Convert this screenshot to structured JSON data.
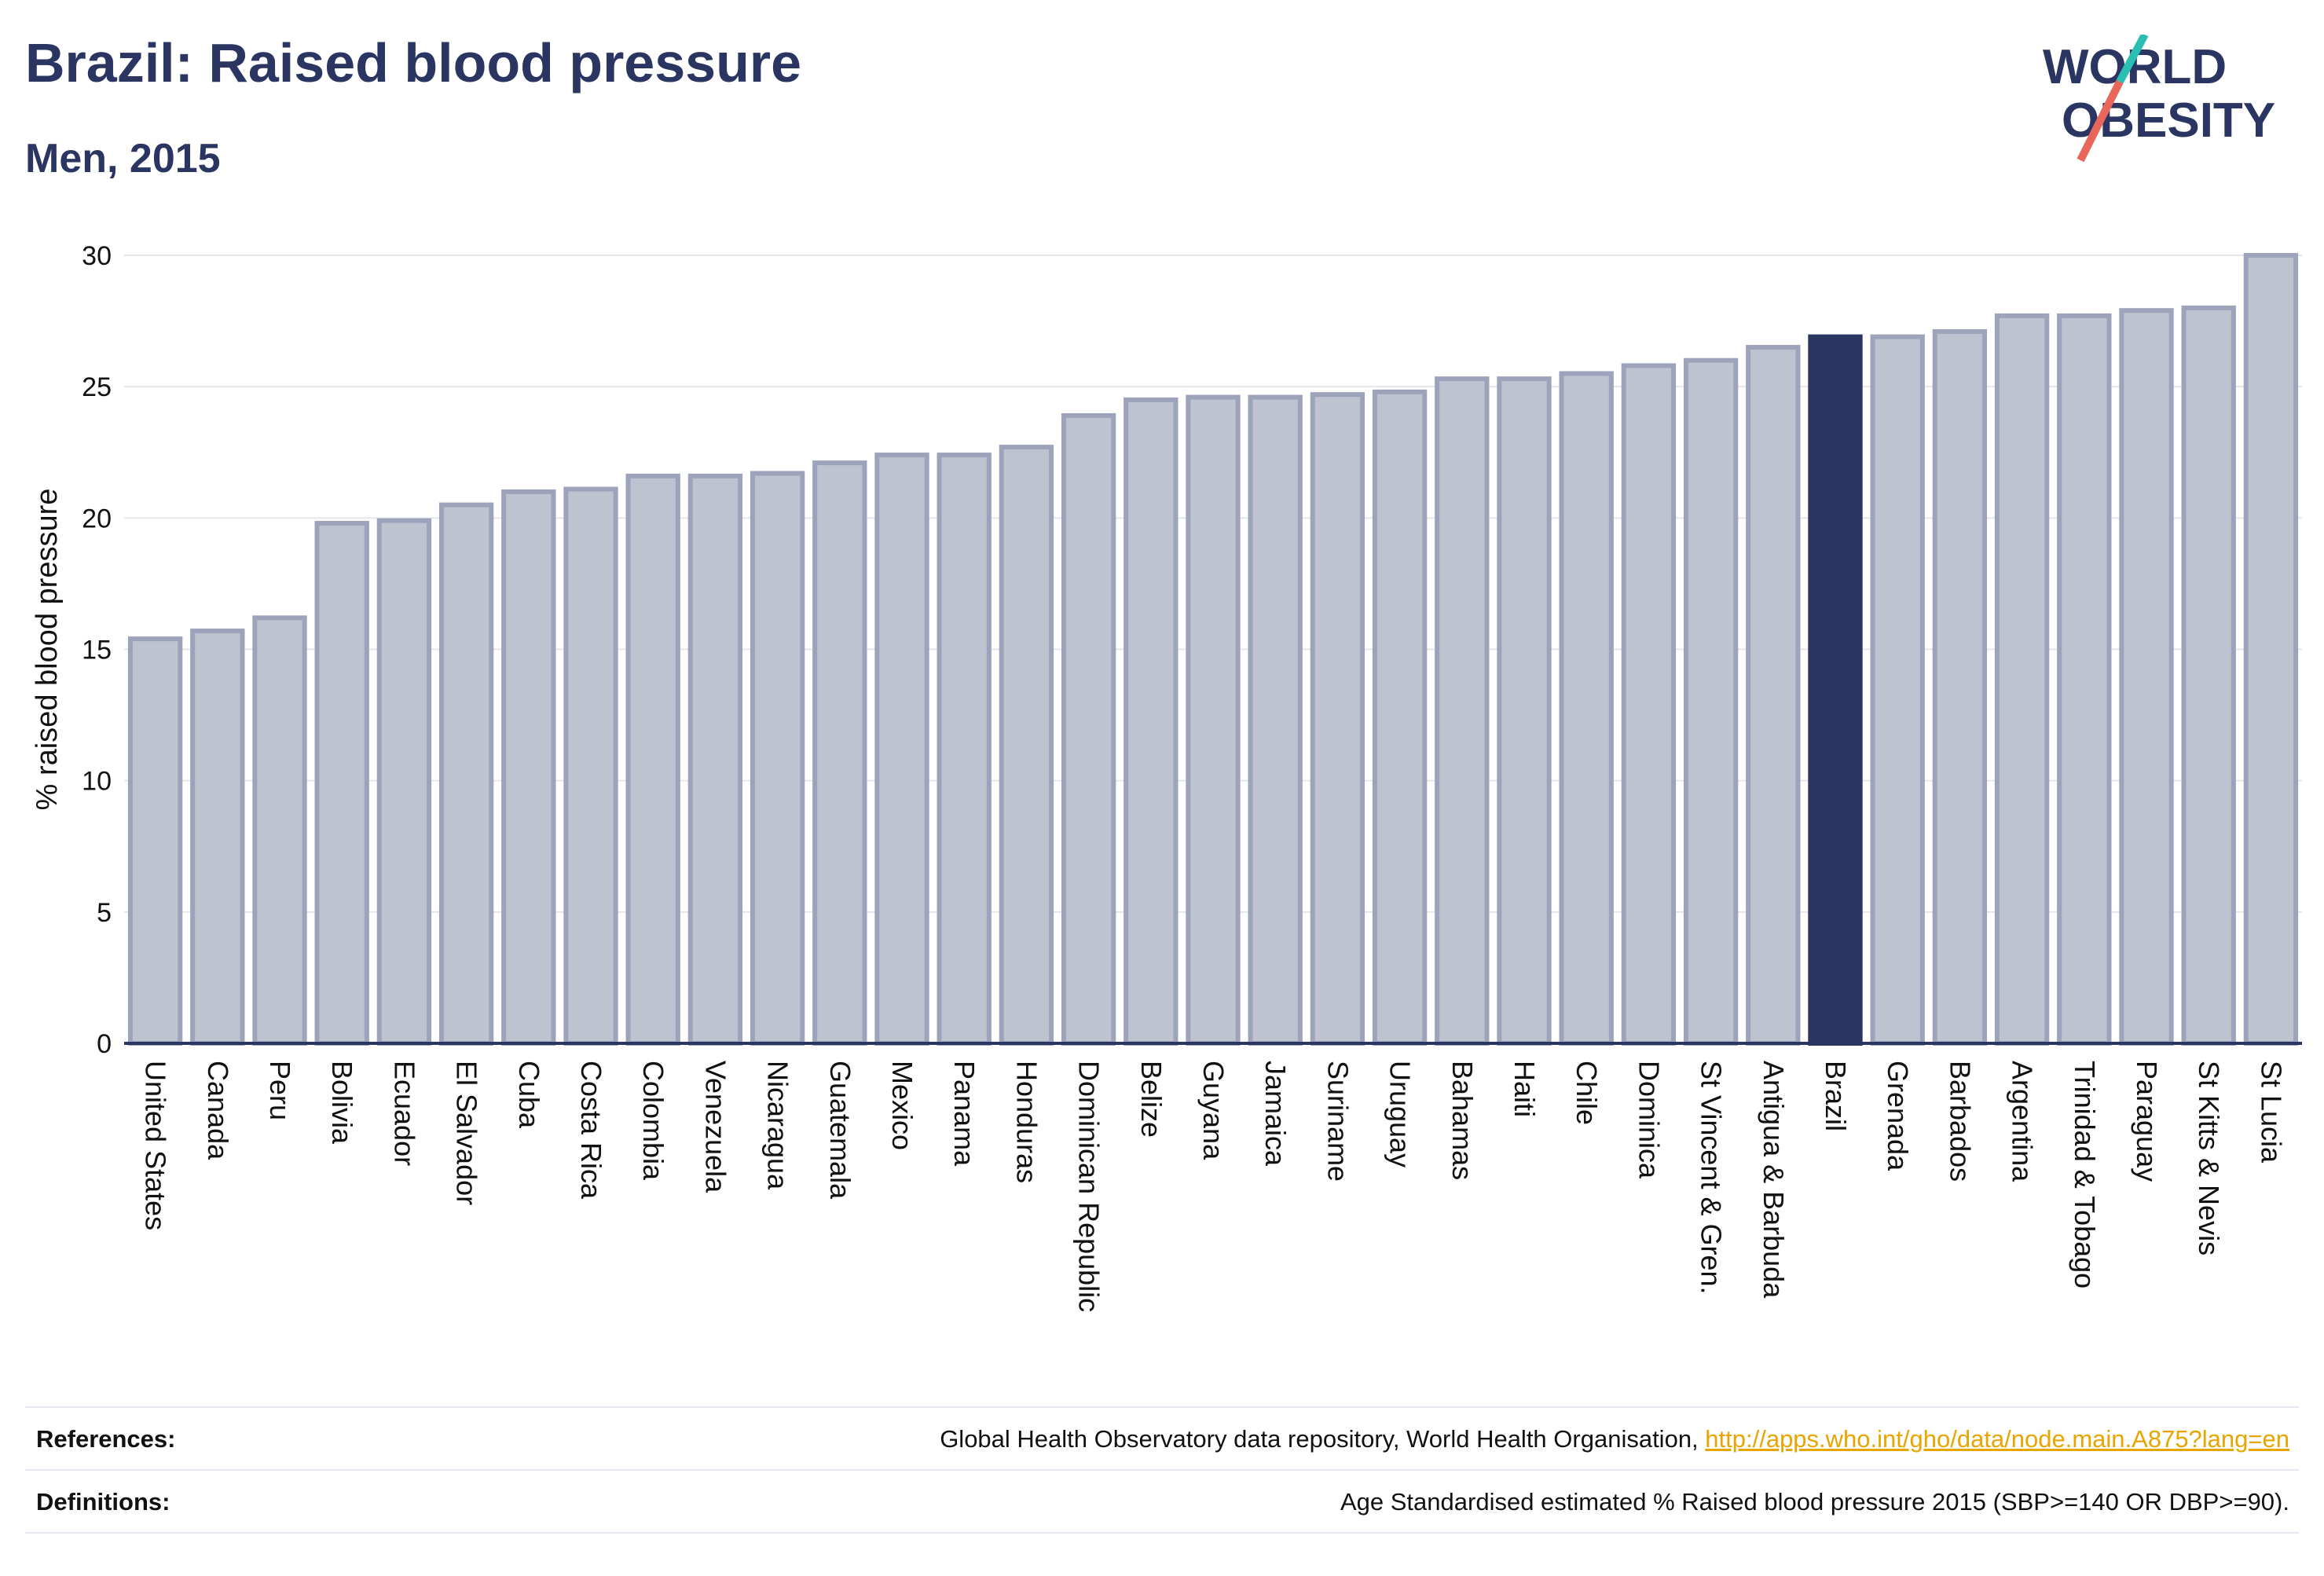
{
  "header": {
    "title": "Brazil: Raised blood pressure",
    "subtitle": "Men, 2015"
  },
  "logo": {
    "line1": "WORLD",
    "line2": "OBESITY",
    "colors": {
      "text": "#2a3561",
      "slash_top": "#2bbfb3",
      "slash_bottom": "#e8665a"
    }
  },
  "colors": {
    "bar_fill": "#bfc2cf",
    "bar_stroke": "#9ea3bc",
    "highlight": "#2a3561",
    "grid": "#e4e6ec",
    "axis": "#2a3561"
  },
  "chart_data": {
    "type": "bar",
    "ylabel": "% raised blood pressure",
    "xlabel": "",
    "ylim": [
      0,
      30
    ],
    "yticks": [
      0,
      5,
      10,
      15,
      20,
      25,
      30
    ],
    "grid": true,
    "highlight": "Brazil",
    "categories": [
      "United States",
      "Canada",
      "Peru",
      "Bolivia",
      "Ecuador",
      "El Salvador",
      "Cuba",
      "Costa Rica",
      "Colombia",
      "Venezuela",
      "Nicaragua",
      "Guatemala",
      "Mexico",
      "Panama",
      "Honduras",
      "Dominican Republic",
      "Belize",
      "Guyana",
      "Jamaica",
      "Suriname",
      "Uruguay",
      "Bahamas",
      "Haiti",
      "Chile",
      "Dominica",
      "St Vincent & Gren.",
      "Antigua & Barbuda",
      "Brazil",
      "Grenada",
      "Barbados",
      "Argentina",
      "Trinidad & Tobago",
      "Paraguay",
      "St Kitts & Nevis",
      "St Lucia"
    ],
    "values": [
      15.4,
      15.7,
      16.2,
      19.8,
      19.9,
      20.5,
      21.0,
      21.1,
      21.6,
      21.6,
      21.7,
      22.1,
      22.4,
      22.4,
      22.7,
      23.9,
      24.5,
      24.6,
      24.6,
      24.7,
      24.8,
      25.3,
      25.3,
      25.5,
      25.8,
      26.0,
      26.5,
      26.9,
      26.9,
      27.1,
      27.7,
      27.7,
      27.9,
      28.0,
      30.0
    ]
  },
  "footer": {
    "references_label": "References:",
    "references_text": "Global Health Observatory data repository, World Health Organisation, ",
    "references_link": "http://apps.who.int/gho/data/node.main.A875?lang=en",
    "definitions_label": "Definitions:",
    "definitions_text": "Age Standardised estimated % Raised blood pressure 2015 (SBP>=140 OR DBP>=90)."
  }
}
